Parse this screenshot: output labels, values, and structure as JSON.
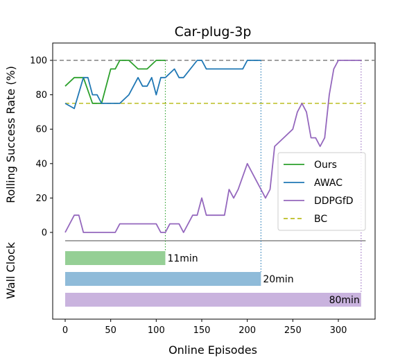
{
  "chart_data": {
    "type": "line",
    "title": "Car-plug-3p",
    "xlabel": "Online Episodes",
    "ylabel": "Rolling Success Rate (%)",
    "wall_clock_label": "Wall Clock",
    "xlim": [
      -8,
      340
    ],
    "ylim": [
      -5,
      110
    ],
    "xticks": [
      0,
      50,
      100,
      150,
      200,
      250,
      300
    ],
    "yticks": [
      0,
      20,
      40,
      60,
      80,
      100
    ],
    "colors": {
      "Ours": "#2ca02c",
      "AWAC": "#1f77b4",
      "DDPGfD": "#9467bd",
      "BC": "#bcbd22",
      "ref": "#808080"
    },
    "series": [
      {
        "name": "Ours",
        "x": [
          0,
          10,
          20,
          30,
          40,
          50,
          55,
          60,
          70,
          80,
          90,
          100,
          105,
          110
        ],
        "y": [
          85,
          90,
          90,
          75,
          75,
          95,
          95,
          100,
          100,
          95,
          95,
          100,
          100,
          100
        ]
      },
      {
        "name": "AWAC",
        "x": [
          0,
          10,
          20,
          25,
          30,
          35,
          40,
          45,
          50,
          55,
          60,
          70,
          80,
          85,
          90,
          95,
          100,
          105,
          110,
          120,
          125,
          130,
          145,
          150,
          155,
          160,
          180,
          195,
          200,
          215
        ],
        "y": [
          75,
          72,
          90,
          90,
          80,
          80,
          75,
          75,
          75,
          75,
          75,
          80,
          90,
          85,
          85,
          90,
          80,
          90,
          90,
          95,
          90,
          90,
          100,
          100,
          95,
          95,
          95,
          95,
          100,
          100
        ]
      },
      {
        "name": "DDPGfD",
        "x": [
          0,
          10,
          15,
          20,
          30,
          50,
          55,
          60,
          80,
          100,
          105,
          110,
          115,
          120,
          125,
          130,
          140,
          145,
          150,
          155,
          160,
          175,
          180,
          185,
          190,
          200,
          210,
          215,
          220,
          225,
          230,
          240,
          250,
          255,
          260,
          265,
          270,
          275,
          280,
          285,
          290,
          295,
          300,
          310,
          315,
          320,
          325
        ],
        "y": [
          0,
          10,
          10,
          0,
          0,
          0,
          0,
          5,
          5,
          5,
          0,
          0,
          5,
          5,
          5,
          0,
          10,
          10,
          20,
          10,
          10,
          10,
          25,
          20,
          25,
          40,
          30,
          25,
          20,
          25,
          50,
          55,
          60,
          70,
          75,
          70,
          55,
          55,
          50,
          55,
          80,
          95,
          100,
          100,
          100,
          100,
          100
        ]
      }
    ],
    "baselines": [
      {
        "name": "BC",
        "y": 75,
        "style": "dashed"
      },
      {
        "name": "reference",
        "y": 100,
        "style": "dashed"
      }
    ],
    "wall_clock_bars": [
      {
        "series": "Ours",
        "episodes": 110,
        "label": "11min"
      },
      {
        "series": "AWAC",
        "episodes": 215,
        "label": "20min"
      },
      {
        "series": "DDPGfD",
        "episodes": 325,
        "label": "80min"
      }
    ],
    "legend": {
      "position": "center-right",
      "entries": [
        "Ours",
        "AWAC",
        "DDPGfD",
        "BC"
      ]
    }
  }
}
